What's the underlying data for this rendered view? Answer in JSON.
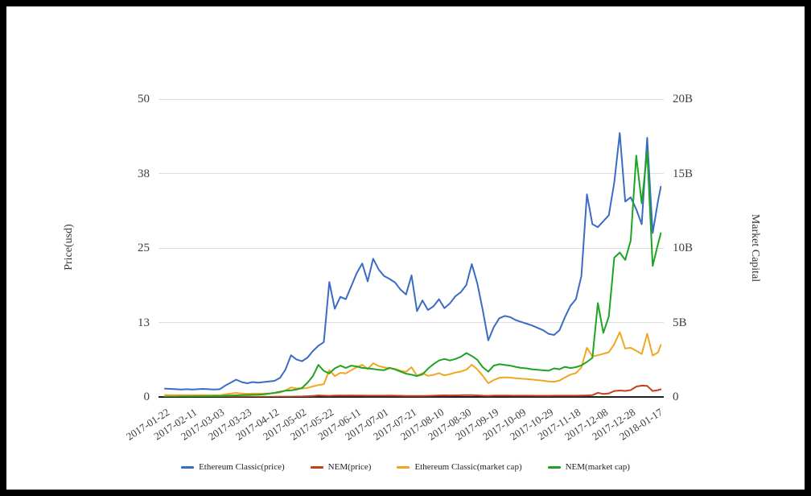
{
  "page": {
    "background": "#ffffff",
    "frame_color": "#000000"
  },
  "chart_data": {
    "type": "line",
    "title": "",
    "grid": "horizontal",
    "legend_position": "bottom",
    "x_axis": {
      "tick_rotation_deg": -33,
      "tick_labels": [
        "2017-01-22",
        "2017-02-11",
        "2017-03-03",
        "2017-03-23",
        "2017-04-12",
        "2017-05-02",
        "2017-05-22",
        "2017-06-11",
        "2017-07-01",
        "2017-07-21",
        "2017-08-10",
        "2017-08-30",
        "2017-09-19",
        "2017-10-09",
        "2017-10-29",
        "2017-11-18",
        "2017-12-08",
        "2017-12-28",
        "2018-01-17"
      ]
    },
    "y_axis_left": {
      "title": "Price(usd)",
      "min": 0,
      "max": 50,
      "tick_values": [
        0,
        12.5,
        25,
        37.5,
        50
      ],
      "tick_labels": [
        "0",
        "13",
        "25",
        "38",
        "50"
      ]
    },
    "y_axis_right": {
      "title": "Market Capital",
      "min": 0,
      "max": 20,
      "unit": "billions USD",
      "tick_values": [
        0,
        5,
        10,
        15,
        20
      ],
      "tick_labels": [
        "0",
        "5B",
        "10B",
        "15B",
        "20B"
      ]
    },
    "x": [
      "2017-01-22",
      "2017-01-26",
      "2017-01-30",
      "2017-02-03",
      "2017-02-07",
      "2017-02-11",
      "2017-02-15",
      "2017-02-19",
      "2017-02-23",
      "2017-02-27",
      "2017-03-03",
      "2017-03-07",
      "2017-03-11",
      "2017-03-15",
      "2017-03-19",
      "2017-03-23",
      "2017-03-27",
      "2017-03-31",
      "2017-04-04",
      "2017-04-08",
      "2017-04-12",
      "2017-04-16",
      "2017-04-20",
      "2017-04-24",
      "2017-04-28",
      "2017-05-02",
      "2017-05-06",
      "2017-05-10",
      "2017-05-14",
      "2017-05-18",
      "2017-05-22",
      "2017-05-26",
      "2017-05-30",
      "2017-06-03",
      "2017-06-07",
      "2017-06-11",
      "2017-06-15",
      "2017-06-19",
      "2017-06-23",
      "2017-06-27",
      "2017-07-01",
      "2017-07-05",
      "2017-07-09",
      "2017-07-13",
      "2017-07-17",
      "2017-07-21",
      "2017-07-25",
      "2017-07-29",
      "2017-08-02",
      "2017-08-06",
      "2017-08-10",
      "2017-08-14",
      "2017-08-18",
      "2017-08-22",
      "2017-08-26",
      "2017-08-30",
      "2017-09-03",
      "2017-09-07",
      "2017-09-11",
      "2017-09-15",
      "2017-09-19",
      "2017-09-23",
      "2017-09-27",
      "2017-10-01",
      "2017-10-05",
      "2017-10-09",
      "2017-10-13",
      "2017-10-17",
      "2017-10-21",
      "2017-10-25",
      "2017-10-29",
      "2017-11-02",
      "2017-11-06",
      "2017-11-10",
      "2017-11-14",
      "2017-11-18",
      "2017-11-22",
      "2017-11-26",
      "2017-11-30",
      "2017-12-04",
      "2017-12-08",
      "2017-12-12",
      "2017-12-16",
      "2017-12-20",
      "2017-12-24",
      "2017-12-28",
      "2018-01-01",
      "2018-01-05",
      "2018-01-09",
      "2018-01-13",
      "2018-01-17",
      "2018-01-19"
    ],
    "series": [
      {
        "name": "Ethereum Classic(price)",
        "axis": "left",
        "color": "#3b6cc4",
        "values": [
          1.4,
          1.35,
          1.3,
          1.25,
          1.3,
          1.25,
          1.3,
          1.35,
          1.3,
          1.25,
          1.3,
          1.9,
          2.4,
          2.9,
          2.5,
          2.3,
          2.5,
          2.4,
          2.5,
          2.6,
          2.7,
          3.2,
          4.6,
          7.0,
          6.3,
          6.0,
          6.6,
          7.7,
          8.6,
          9.2,
          19.3,
          14.8,
          16.8,
          16.4,
          18.6,
          20.8,
          22.4,
          19.4,
          23.2,
          21.4,
          20.3,
          19.8,
          19.2,
          18.0,
          17.2,
          20.4,
          14.4,
          16.2,
          14.6,
          15.2,
          16.4,
          14.9,
          15.7,
          16.9,
          17.6,
          18.8,
          22.3,
          19.1,
          14.6,
          9.5,
          11.7,
          13.2,
          13.6,
          13.4,
          12.9,
          12.6,
          12.3,
          12.0,
          11.6,
          11.2,
          10.6,
          10.4,
          11.2,
          13.4,
          15.3,
          16.4,
          20.3,
          34.0,
          29.0,
          28.5,
          29.5,
          30.5,
          36.0,
          44.3,
          32.8,
          33.5,
          31.5,
          29.0,
          43.5,
          27.5,
          33.0,
          35.3
        ]
      },
      {
        "name": "NEM(price)",
        "axis": "left",
        "color": "#c2421c",
        "values": [
          0.01,
          0.01,
          0.01,
          0.01,
          0.01,
          0.01,
          0.01,
          0.01,
          0.01,
          0.01,
          0.01,
          0.02,
          0.02,
          0.02,
          0.02,
          0.02,
          0.02,
          0.02,
          0.03,
          0.03,
          0.04,
          0.05,
          0.06,
          0.06,
          0.07,
          0.08,
          0.12,
          0.17,
          0.26,
          0.22,
          0.19,
          0.23,
          0.25,
          0.24,
          0.25,
          0.24,
          0.23,
          0.22,
          0.22,
          0.21,
          0.21,
          0.23,
          0.22,
          0.2,
          0.18,
          0.17,
          0.16,
          0.18,
          0.19,
          0.22,
          0.26,
          0.27,
          0.26,
          0.27,
          0.29,
          0.31,
          0.3,
          0.27,
          0.22,
          0.19,
          0.23,
          0.24,
          0.24,
          0.23,
          0.22,
          0.22,
          0.21,
          0.21,
          0.2,
          0.2,
          0.2,
          0.21,
          0.21,
          0.22,
          0.21,
          0.22,
          0.23,
          0.26,
          0.3,
          0.7,
          0.5,
          0.6,
          1.0,
          1.08,
          1.02,
          1.15,
          1.75,
          1.9,
          1.85,
          1.0,
          1.15,
          1.3
        ]
      },
      {
        "name": "Ethereum Classic(market cap)",
        "axis": "right",
        "color": "#f0a71f",
        "values": [
          0.13,
          0.12,
          0.12,
          0.12,
          0.12,
          0.12,
          0.12,
          0.13,
          0.12,
          0.12,
          0.12,
          0.18,
          0.22,
          0.27,
          0.23,
          0.21,
          0.23,
          0.22,
          0.23,
          0.24,
          0.25,
          0.3,
          0.43,
          0.64,
          0.58,
          0.56,
          0.61,
          0.71,
          0.8,
          0.86,
          1.8,
          1.4,
          1.62,
          1.58,
          1.8,
          2.0,
          2.16,
          1.88,
          2.26,
          2.08,
          1.98,
          1.94,
          1.88,
          1.77,
          1.69,
          2.0,
          1.42,
          1.6,
          1.42,
          1.48,
          1.6,
          1.45,
          1.53,
          1.64,
          1.71,
          1.83,
          2.16,
          1.86,
          1.42,
          0.92,
          1.14,
          1.28,
          1.32,
          1.3,
          1.26,
          1.23,
          1.2,
          1.17,
          1.13,
          1.09,
          1.04,
          1.02,
          1.1,
          1.31,
          1.5,
          1.6,
          1.98,
          3.3,
          2.72,
          2.8,
          2.9,
          3.0,
          3.55,
          4.35,
          3.25,
          3.3,
          3.1,
          2.88,
          4.25,
          2.78,
          3.0,
          3.5
        ]
      },
      {
        "name": "NEM(market cap)",
        "axis": "right",
        "color": "#1ea423",
        "values": [
          0.02,
          0.02,
          0.02,
          0.03,
          0.03,
          0.04,
          0.04,
          0.05,
          0.05,
          0.06,
          0.06,
          0.08,
          0.09,
          0.11,
          0.12,
          0.13,
          0.14,
          0.15,
          0.18,
          0.22,
          0.28,
          0.35,
          0.42,
          0.45,
          0.5,
          0.6,
          0.95,
          1.4,
          2.15,
          1.75,
          1.58,
          1.92,
          2.1,
          1.95,
          2.1,
          2.05,
          1.95,
          1.92,
          1.88,
          1.82,
          1.8,
          1.95,
          1.85,
          1.7,
          1.56,
          1.5,
          1.4,
          1.52,
          1.9,
          2.2,
          2.45,
          2.55,
          2.45,
          2.55,
          2.7,
          2.95,
          2.75,
          2.5,
          2.0,
          1.7,
          2.1,
          2.2,
          2.15,
          2.1,
          2.02,
          1.95,
          1.92,
          1.86,
          1.82,
          1.79,
          1.76,
          1.92,
          1.86,
          2.02,
          1.94,
          2.0,
          2.12,
          2.35,
          2.62,
          6.3,
          4.3,
          5.4,
          9.35,
          9.7,
          9.2,
          10.5,
          16.2,
          13.0,
          16.5,
          8.8,
          10.3,
          11.0
        ]
      }
    ]
  }
}
